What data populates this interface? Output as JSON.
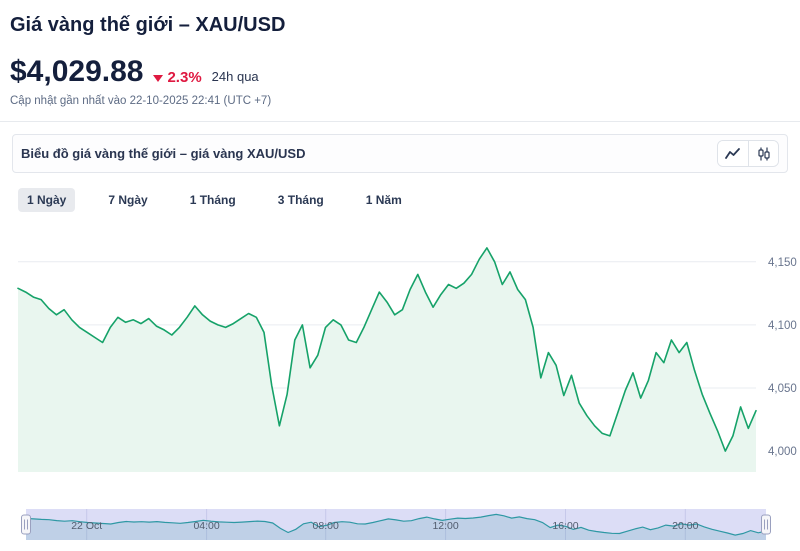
{
  "header": {
    "title": "Giá vàng thế giới – XAU/USD",
    "price": "$4,029.88",
    "change": "2.3%",
    "change_direction": "down",
    "period": "24h qua",
    "updated": "Cập nhật gần nhất vào 22-10-2025 22:41 (UTC +7)"
  },
  "chart_panel": {
    "title": "Biểu đồ giá vàng thế giới – giá vàng XAU/USD",
    "tools": {
      "line": "line-chart",
      "candlestick": "candlestick-chart"
    },
    "ranges": [
      {
        "label": "1 Ngày",
        "active": true
      },
      {
        "label": "7 Ngày",
        "active": false
      },
      {
        "label": "1 Tháng",
        "active": false
      },
      {
        "label": "3 Tháng",
        "active": false
      },
      {
        "label": "1 Năm",
        "active": false
      }
    ]
  },
  "colors": {
    "accent_red": "#df1941",
    "line_green": "#16a269",
    "fill_green": "#e9f6ef",
    "grid": "#e9ecf0",
    "y_label": "#69758e",
    "navigator_bg": "#dcddf6",
    "navigator_line": "#2e98a4",
    "navigator_fill": "rgba(46,140,155,0.16)",
    "navigator_grid": "#c6c8ea",
    "navigator_label": "#515c6e"
  },
  "chart_data": {
    "type": "area",
    "title": "Giá vàng XAU/USD – 1 Ngày",
    "series": [
      {
        "name": "XAU/USD",
        "values": [
          4129,
          4126,
          4122,
          4120,
          4113,
          4108,
          4112,
          4104,
          4098,
          4094,
          4090,
          4086,
          4098,
          4106,
          4102,
          4104,
          4101,
          4105,
          4099,
          4096,
          4092,
          4098,
          4106,
          4115,
          4108,
          4103,
          4100,
          4098,
          4101,
          4105,
          4109,
          4106,
          4094,
          4052,
          4020,
          4045,
          4088,
          4100,
          4066,
          4076,
          4098,
          4104,
          4100,
          4088,
          4086,
          4098,
          4112,
          4126,
          4118,
          4108,
          4112,
          4128,
          4140,
          4126,
          4114,
          4124,
          4132,
          4129,
          4133,
          4140,
          4152,
          4161,
          4150,
          4132,
          4142,
          4128,
          4120,
          4098,
          4058,
          4078,
          4068,
          4044,
          4060,
          4038,
          4028,
          4020,
          4014,
          4012,
          4030,
          4048,
          4062,
          4042,
          4056,
          4078,
          4070,
          4088,
          4078,
          4086,
          4064,
          4045,
          4030,
          4016,
          4000,
          4012,
          4035,
          4018,
          4032
        ]
      }
    ],
    "ylim": [
      3985,
      4172
    ],
    "yticks": [
      4000,
      4050,
      4100,
      4150
    ],
    "ytick_labels": [
      "4,000",
      "4,050",
      "4,100",
      "4,150"
    ],
    "xticks": [
      {
        "label": "22 Oct",
        "pos": 0.082
      },
      {
        "label": "04:00",
        "pos": 0.244
      },
      {
        "label": "08:00",
        "pos": 0.405
      },
      {
        "label": "12:00",
        "pos": 0.567
      },
      {
        "label": "16:00",
        "pos": 0.729
      },
      {
        "label": "20:00",
        "pos": 0.891
      }
    ],
    "legend": false,
    "grid": "horizontal"
  }
}
